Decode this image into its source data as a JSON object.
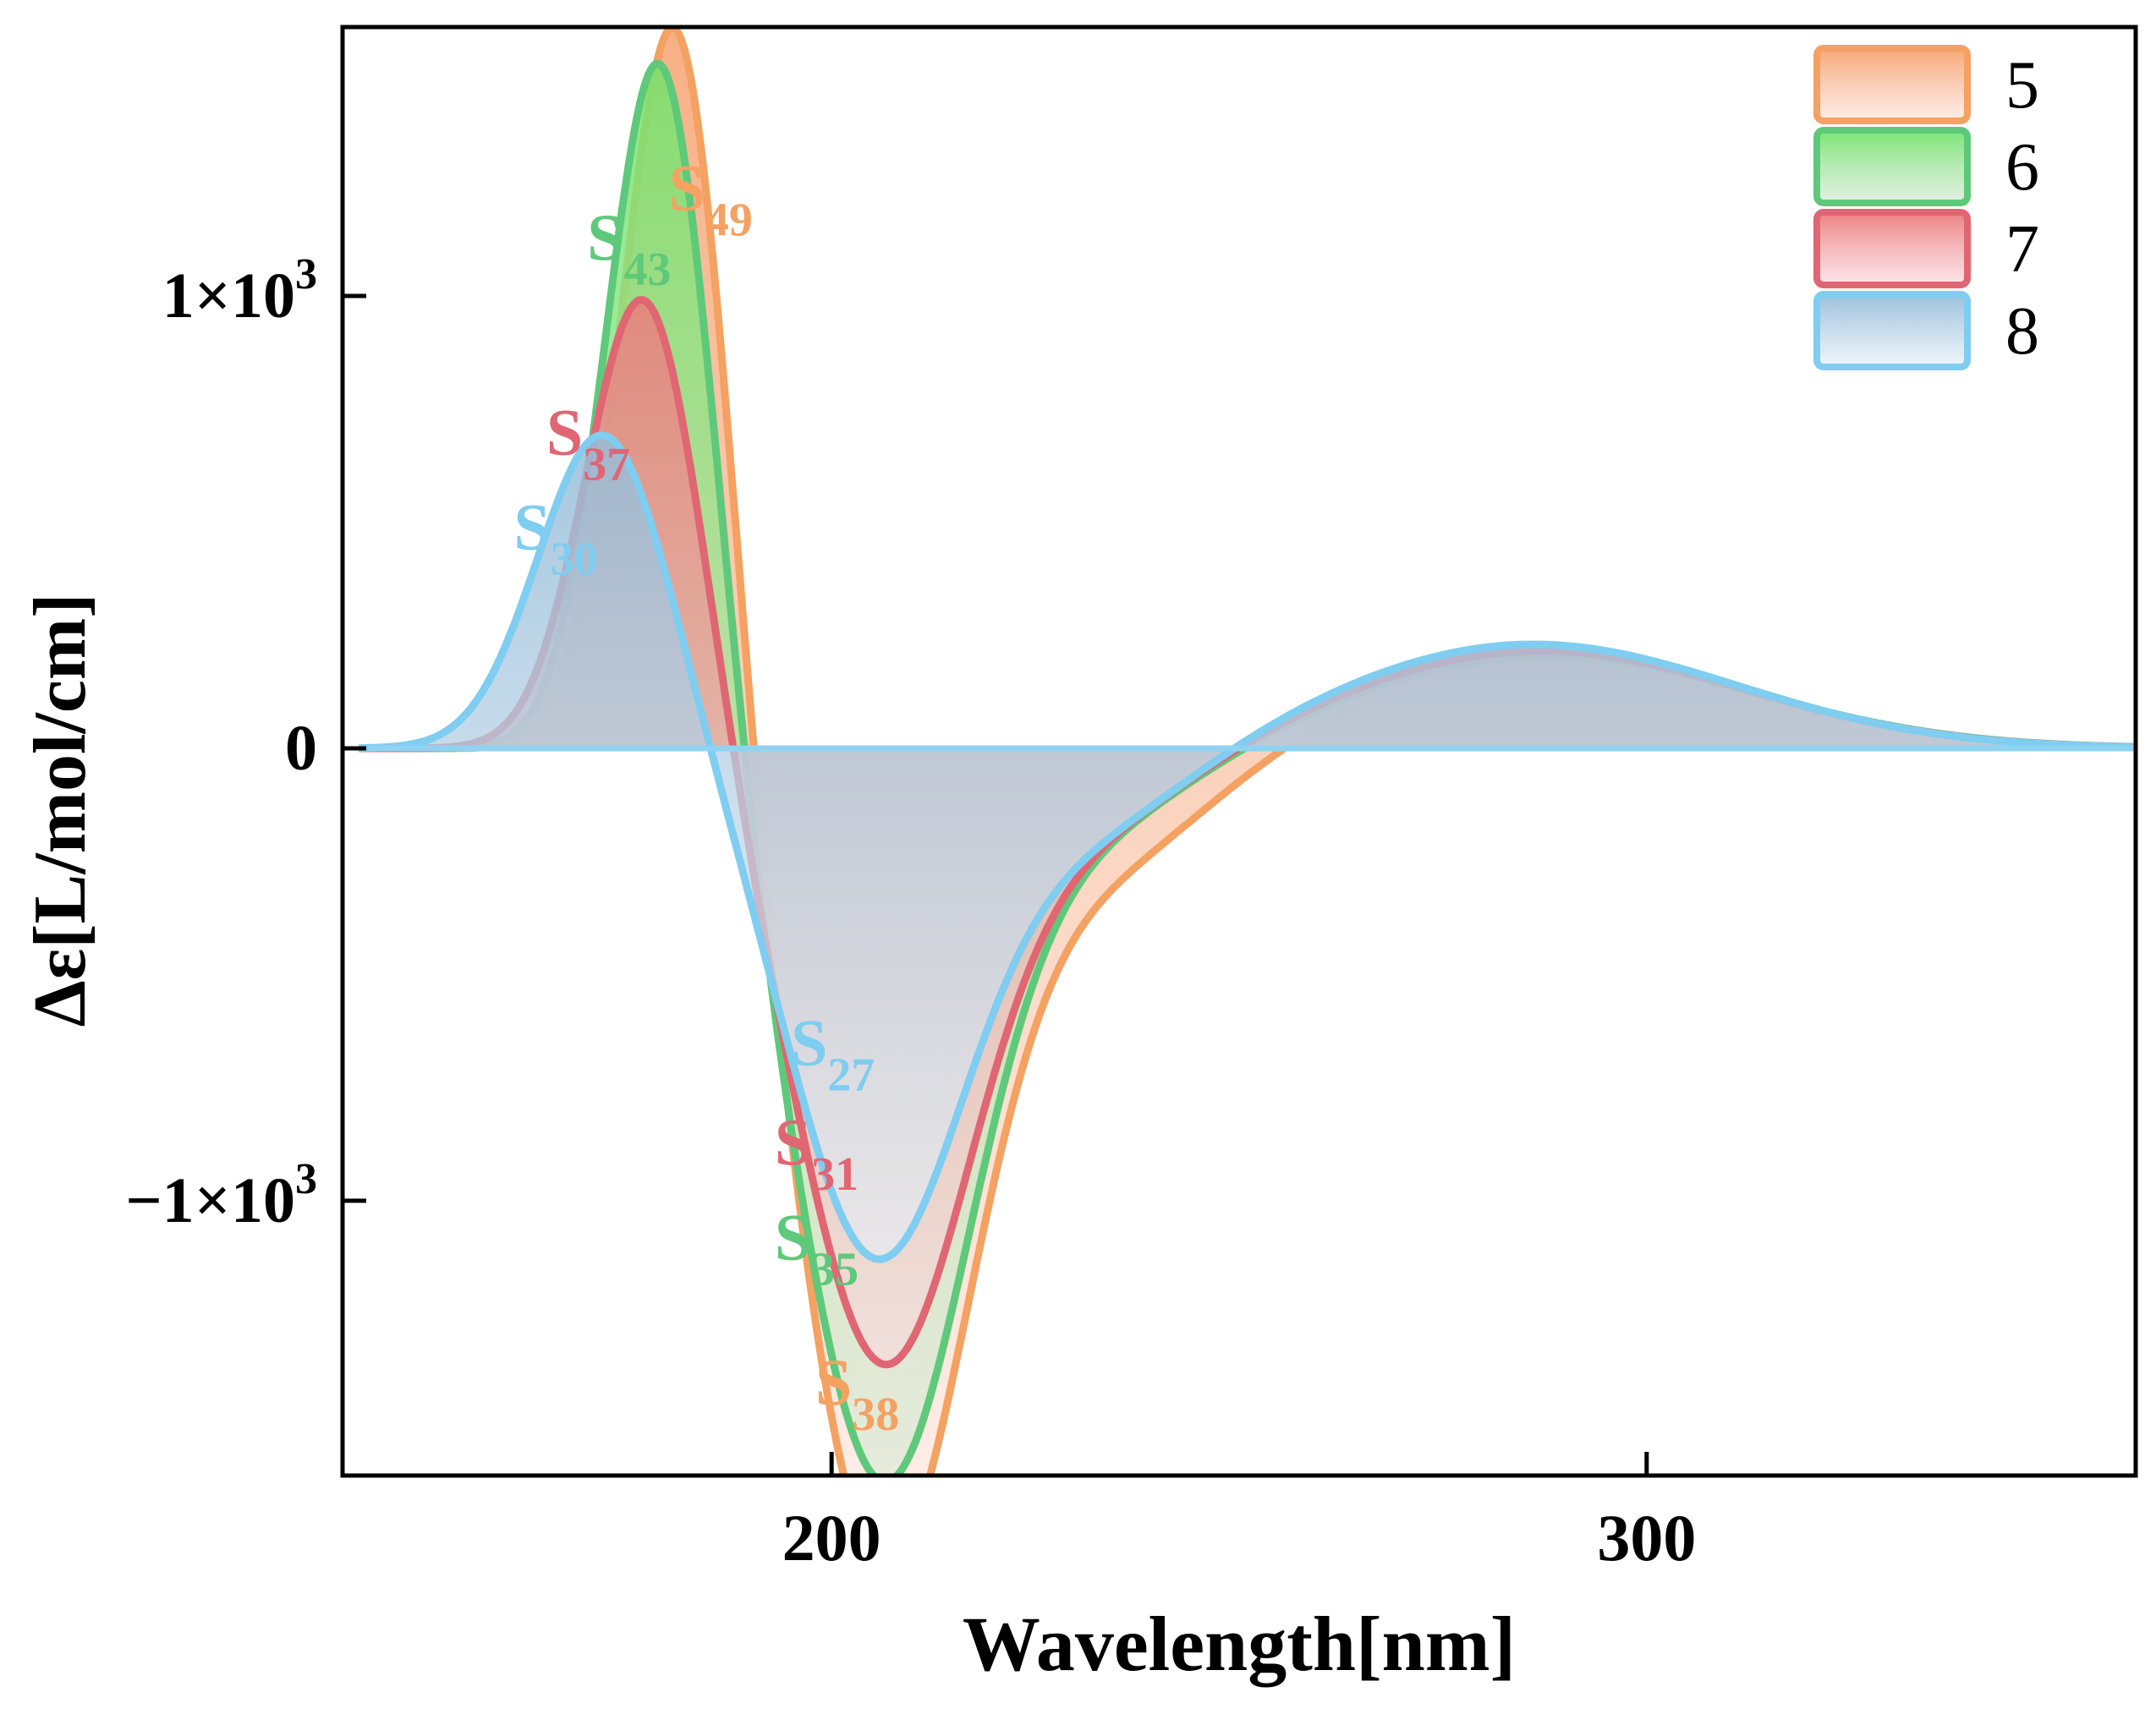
{
  "chart_data": {
    "type": "area",
    "title": "",
    "xlabel": "Wavelength[nm]",
    "ylabel": "Δε[L/mol/cm]",
    "xlim": [
      140,
      360
    ],
    "ylim": [
      -1600,
      1600
    ],
    "x_ticks": [
      {
        "value": 200,
        "label": "200"
      },
      {
        "value": 300,
        "label": "300"
      }
    ],
    "y_ticks": [
      {
        "value": 1000,
        "mantissa": "1×10",
        "exp": "3"
      },
      {
        "value": 0,
        "mantissa": "0",
        "exp": ""
      },
      {
        "value": -1000,
        "mantissa": "−1×10",
        "exp": "3"
      }
    ],
    "legend_position": "top-right",
    "series": [
      {
        "name": "5",
        "color": "#f4a162",
        "fill_top": "#f6a26f",
        "fill_bottom": "#fde4dc",
        "gaussians": [
          {
            "amp": 1690,
            "center": 181,
            "width": 6.5
          },
          {
            "amp": -1700,
            "center": 206,
            "width": 10.5
          },
          {
            "amp": -300,
            "center": 229,
            "width": 16
          },
          {
            "amp": 200,
            "center": 289,
            "width": 24
          }
        ],
        "peak_labels": [
          {
            "text": "S",
            "sub": "49",
            "x": 180,
            "y": 1190
          },
          {
            "text": "S",
            "sub": "38",
            "x": 198,
            "y": -1450
          }
        ]
      },
      {
        "name": "6",
        "color": "#5ec97a",
        "fill_top": "#74e46c",
        "fill_bottom": "#d7ead7",
        "gaussians": [
          {
            "amp": 1570,
            "center": 179,
            "width": 6.5
          },
          {
            "amp": -1520,
            "center": 206,
            "width": 10.5
          },
          {
            "amp": -220,
            "center": 226,
            "width": 16
          },
          {
            "amp": 205,
            "center": 288,
            "width": 25
          }
        ],
        "peak_labels": [
          {
            "text": "S",
            "sub": "43",
            "x": 170,
            "y": 1080
          },
          {
            "text": "S",
            "sub": "35",
            "x": 193,
            "y": -1130
          }
        ]
      },
      {
        "name": "7",
        "color": "#e06673",
        "fill_top": "#ec7b7c",
        "fill_bottom": "#fad9df",
        "gaussians": [
          {
            "amp": 1020,
            "center": 177,
            "width": 7
          },
          {
            "amp": -1260,
            "center": 206,
            "width": 10.5
          },
          {
            "amp": -220,
            "center": 226,
            "width": 16
          },
          {
            "amp": 215,
            "center": 287,
            "width": 25
          }
        ],
        "peak_labels": [
          {
            "text": "S",
            "sub": "37",
            "x": 165,
            "y": 650
          },
          {
            "text": "S",
            "sub": "31",
            "x": 193,
            "y": -920
          }
        ]
      },
      {
        "name": "8",
        "color": "#7fcdf0",
        "fill_top": "#95bcd8",
        "fill_bottom": "#e6f0f8",
        "gaussians": [
          {
            "amp": 700,
            "center": 172,
            "width": 8
          },
          {
            "amp": -1030,
            "center": 205,
            "width": 10.5
          },
          {
            "amp": -230,
            "center": 226,
            "width": 16
          },
          {
            "amp": 230,
            "center": 286,
            "width": 25
          }
        ],
        "peak_labels": [
          {
            "text": "S",
            "sub": "30",
            "x": 161,
            "y": 440
          },
          {
            "text": "S",
            "sub": "27",
            "x": 195,
            "y": -700
          }
        ]
      }
    ]
  }
}
